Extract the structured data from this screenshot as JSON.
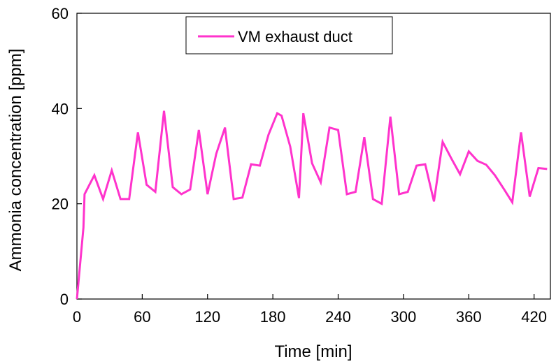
{
  "chart_data": {
    "type": "line",
    "xlabel": "Time [min]",
    "ylabel": "Ammonia  concentration [ppm]",
    "xlim": [
      0,
      435
    ],
    "ylim": [
      0,
      60
    ],
    "xticks": [
      0,
      60,
      120,
      180,
      240,
      300,
      360,
      420
    ],
    "xtick_labels": [
      "0",
      "60",
      "120",
      "180",
      "240",
      "300",
      "360",
      "420"
    ],
    "yticks": [
      0,
      20,
      40,
      60
    ],
    "ytick_labels": [
      "0",
      "20",
      "40",
      "60"
    ],
    "grid": false,
    "legend_position": "top-center",
    "series": [
      {
        "name": "VM exhaust duct",
        "color": "#ff33cc",
        "x": [
          0,
          6,
          7,
          16,
          24,
          32,
          40,
          48,
          56,
          64,
          72,
          80,
          88,
          96,
          104,
          112,
          120,
          128,
          136,
          144,
          152,
          160,
          168,
          176,
          184,
          188,
          196,
          204,
          208,
          216,
          224,
          232,
          240,
          248,
          256,
          264,
          272,
          280,
          288,
          296,
          304,
          312,
          320,
          328,
          336,
          344,
          352,
          360,
          368,
          376,
          384,
          392,
          400,
          408,
          416,
          424,
          432
        ],
        "y": [
          0,
          15,
          22,
          26,
          21,
          27,
          21,
          21,
          35,
          24,
          22.5,
          39.5,
          23.5,
          22,
          23,
          35.5,
          22,
          30.5,
          36,
          21,
          21.3,
          28.3,
          28,
          34.5,
          39,
          38.5,
          32,
          21.2,
          39,
          28.5,
          24.5,
          36,
          35.5,
          22,
          22.5,
          34,
          21,
          20,
          38.3,
          22,
          22.5,
          28,
          28.3,
          20.5,
          33,
          29.5,
          26.2,
          31,
          29,
          28.2,
          26,
          23.2,
          20.3,
          35,
          21.5,
          27.5,
          27.3
        ]
      }
    ]
  }
}
